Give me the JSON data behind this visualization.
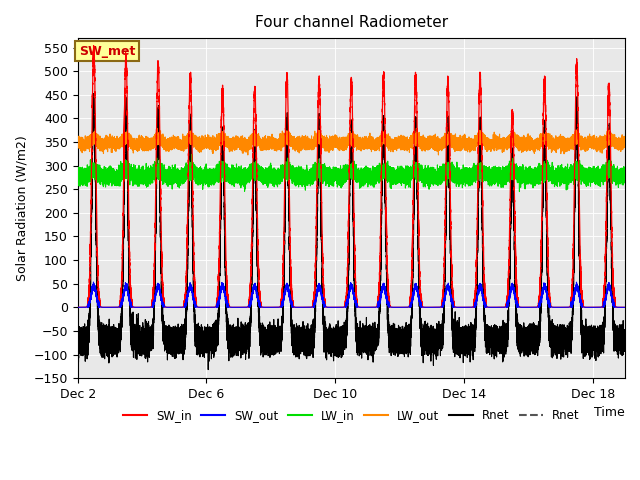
{
  "title": "Four channel Radiometer",
  "xlabel": "Time",
  "ylabel": "Solar Radiation (W/m2)",
  "ylim": [
    -150,
    570
  ],
  "yticks": [
    -150,
    -100,
    -50,
    0,
    50,
    100,
    150,
    200,
    250,
    300,
    350,
    400,
    450,
    500,
    550
  ],
  "xtick_labels": [
    "Dec 2",
    "Dec 6",
    "Dec 10",
    "Dec 14",
    "Dec 18"
  ],
  "bg_color": "#e8e8e8",
  "fig_color": "#ffffff",
  "annotation_text": "SW_met",
  "annotation_box_facecolor": "#ffff99",
  "annotation_box_edgecolor": "#8b6914",
  "sw_in_color": "#ff0000",
  "sw_out_color": "#0000ff",
  "lw_in_color": "#00dd00",
  "lw_out_color": "#ff8800",
  "rnet_color": "#000000",
  "rnet2_color": "#555555"
}
